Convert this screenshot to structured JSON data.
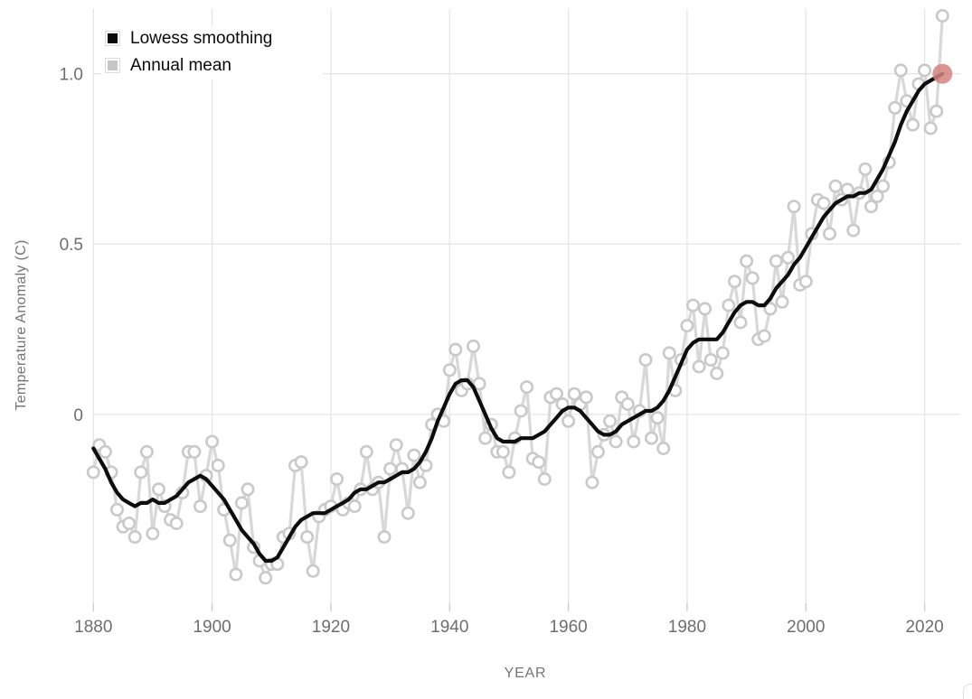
{
  "chart": {
    "legend": [
      {
        "label": "Lowess smoothing",
        "color": "#0a0a0a"
      },
      {
        "label": "Annual mean",
        "color": "#c6c6c6"
      }
    ],
    "x_axis": {
      "title": "YEAR",
      "ticks": [
        1880,
        1900,
        1920,
        1940,
        1960,
        1980,
        2000,
        2020
      ]
    },
    "y_axis": {
      "title": "Temperature Anomaly (C)",
      "ticks": [
        0,
        0.5,
        1.0
      ],
      "tick_labels": [
        "0",
        "0.5",
        "1.0"
      ]
    }
  },
  "chart_data": {
    "type": "line",
    "title": "",
    "xlabel": "YEAR",
    "ylabel": "Temperature Anomaly (C)",
    "xlim": [
      1879.5,
      2026
    ],
    "ylim": [
      -0.56,
      1.19
    ],
    "grid": true,
    "legend_position": "top-left",
    "style": {
      "gridline_color": "#e4e4e4",
      "tick_color": "#cfcfcf",
      "tick_label_color": "#6e6e6e",
      "axis_title_color": "#757575",
      "background": "#ffffff"
    },
    "x": [
      1880,
      1881,
      1882,
      1883,
      1884,
      1885,
      1886,
      1887,
      1888,
      1889,
      1890,
      1891,
      1892,
      1893,
      1894,
      1895,
      1896,
      1897,
      1898,
      1899,
      1900,
      1901,
      1902,
      1903,
      1904,
      1905,
      1906,
      1907,
      1908,
      1909,
      1910,
      1911,
      1912,
      1913,
      1914,
      1915,
      1916,
      1917,
      1918,
      1919,
      1920,
      1921,
      1922,
      1923,
      1924,
      1925,
      1926,
      1927,
      1928,
      1929,
      1930,
      1931,
      1932,
      1933,
      1934,
      1935,
      1936,
      1937,
      1938,
      1939,
      1940,
      1941,
      1942,
      1943,
      1944,
      1945,
      1946,
      1947,
      1948,
      1949,
      1950,
      1951,
      1952,
      1953,
      1954,
      1955,
      1956,
      1957,
      1958,
      1959,
      1960,
      1961,
      1962,
      1963,
      1964,
      1965,
      1966,
      1967,
      1968,
      1969,
      1970,
      1971,
      1972,
      1973,
      1974,
      1975,
      1976,
      1977,
      1978,
      1979,
      1980,
      1981,
      1982,
      1983,
      1984,
      1985,
      1986,
      1987,
      1988,
      1989,
      1990,
      1991,
      1992,
      1993,
      1994,
      1995,
      1996,
      1997,
      1998,
      1999,
      2000,
      2001,
      2002,
      2003,
      2004,
      2005,
      2006,
      2007,
      2008,
      2009,
      2010,
      2011,
      2012,
      2013,
      2014,
      2015,
      2016,
      2017,
      2018,
      2019,
      2020,
      2021,
      2022,
      2023
    ],
    "series": [
      {
        "name": "Annual mean",
        "line_color": "#d8d8d8",
        "marker": "open-circle",
        "marker_stroke": "#c9c9c9",
        "marker_fill": "#ffffff",
        "values": [
          -0.17,
          -0.09,
          -0.11,
          -0.17,
          -0.28,
          -0.33,
          -0.32,
          -0.36,
          -0.17,
          -0.11,
          -0.35,
          -0.22,
          -0.27,
          -0.31,
          -0.32,
          -0.23,
          -0.11,
          -0.11,
          -0.27,
          -0.18,
          -0.08,
          -0.15,
          -0.28,
          -0.37,
          -0.47,
          -0.26,
          -0.22,
          -0.39,
          -0.43,
          -0.48,
          -0.44,
          -0.44,
          -0.36,
          -0.35,
          -0.15,
          -0.14,
          -0.36,
          -0.46,
          -0.3,
          -0.28,
          -0.27,
          -0.19,
          -0.28,
          -0.26,
          -0.27,
          -0.22,
          -0.11,
          -0.22,
          -0.2,
          -0.36,
          -0.16,
          -0.09,
          -0.16,
          -0.29,
          -0.12,
          -0.2,
          -0.15,
          -0.03,
          0.0,
          -0.02,
          0.13,
          0.19,
          0.07,
          0.09,
          0.2,
          0.09,
          -0.07,
          -0.03,
          -0.11,
          -0.11,
          -0.17,
          -0.07,
          0.01,
          0.08,
          -0.13,
          -0.14,
          -0.19,
          0.05,
          0.06,
          0.03,
          -0.02,
          0.06,
          0.03,
          0.05,
          -0.2,
          -0.11,
          -0.06,
          -0.02,
          -0.08,
          0.05,
          0.03,
          -0.08,
          0.01,
          0.16,
          -0.07,
          -0.01,
          -0.1,
          0.18,
          0.07,
          0.16,
          0.26,
          0.32,
          0.14,
          0.31,
          0.16,
          0.12,
          0.18,
          0.32,
          0.39,
          0.27,
          0.45,
          0.4,
          0.22,
          0.23,
          0.31,
          0.45,
          0.33,
          0.46,
          0.61,
          0.38,
          0.39,
          0.53,
          0.63,
          0.62,
          0.53,
          0.67,
          0.63,
          0.66,
          0.54,
          0.65,
          0.72,
          0.61,
          0.64,
          0.67,
          0.74,
          0.9,
          1.01,
          0.92,
          0.85,
          0.97,
          1.01,
          0.84,
          0.89,
          1.17
        ]
      },
      {
        "name": "Lowess smoothing",
        "line_color": "#0d0d0d",
        "marker": "none",
        "values": [
          -0.1,
          -0.13,
          -0.16,
          -0.2,
          -0.23,
          -0.25,
          -0.26,
          -0.27,
          -0.26,
          -0.26,
          -0.25,
          -0.26,
          -0.26,
          -0.25,
          -0.24,
          -0.22,
          -0.2,
          -0.19,
          -0.18,
          -0.19,
          -0.21,
          -0.23,
          -0.25,
          -0.28,
          -0.31,
          -0.34,
          -0.36,
          -0.38,
          -0.41,
          -0.43,
          -0.43,
          -0.42,
          -0.39,
          -0.36,
          -0.33,
          -0.31,
          -0.3,
          -0.29,
          -0.29,
          -0.29,
          -0.28,
          -0.27,
          -0.26,
          -0.25,
          -0.23,
          -0.22,
          -0.22,
          -0.21,
          -0.2,
          -0.2,
          -0.19,
          -0.18,
          -0.17,
          -0.17,
          -0.16,
          -0.14,
          -0.11,
          -0.07,
          -0.02,
          0.02,
          0.06,
          0.09,
          0.1,
          0.1,
          0.08,
          0.04,
          0.0,
          -0.04,
          -0.07,
          -0.08,
          -0.08,
          -0.08,
          -0.07,
          -0.07,
          -0.07,
          -0.06,
          -0.05,
          -0.03,
          -0.01,
          0.01,
          0.02,
          0.02,
          0.01,
          -0.01,
          -0.03,
          -0.05,
          -0.06,
          -0.06,
          -0.05,
          -0.03,
          -0.02,
          -0.01,
          0.0,
          0.01,
          0.01,
          0.02,
          0.04,
          0.07,
          0.11,
          0.15,
          0.19,
          0.21,
          0.22,
          0.22,
          0.22,
          0.22,
          0.24,
          0.27,
          0.3,
          0.32,
          0.33,
          0.33,
          0.32,
          0.32,
          0.34,
          0.37,
          0.39,
          0.41,
          0.44,
          0.46,
          0.49,
          0.52,
          0.55,
          0.58,
          0.6,
          0.62,
          0.63,
          0.64,
          0.64,
          0.65,
          0.65,
          0.66,
          0.69,
          0.72,
          0.76,
          0.8,
          0.85,
          0.89,
          0.92,
          0.95,
          0.97,
          0.98,
          0.99,
          1.0
        ]
      }
    ],
    "highlight_point": {
      "x": 2023,
      "y": 1.0,
      "series": "Lowess smoothing",
      "color": "#d5837f",
      "opacity": 0.85,
      "radius": 11
    }
  }
}
